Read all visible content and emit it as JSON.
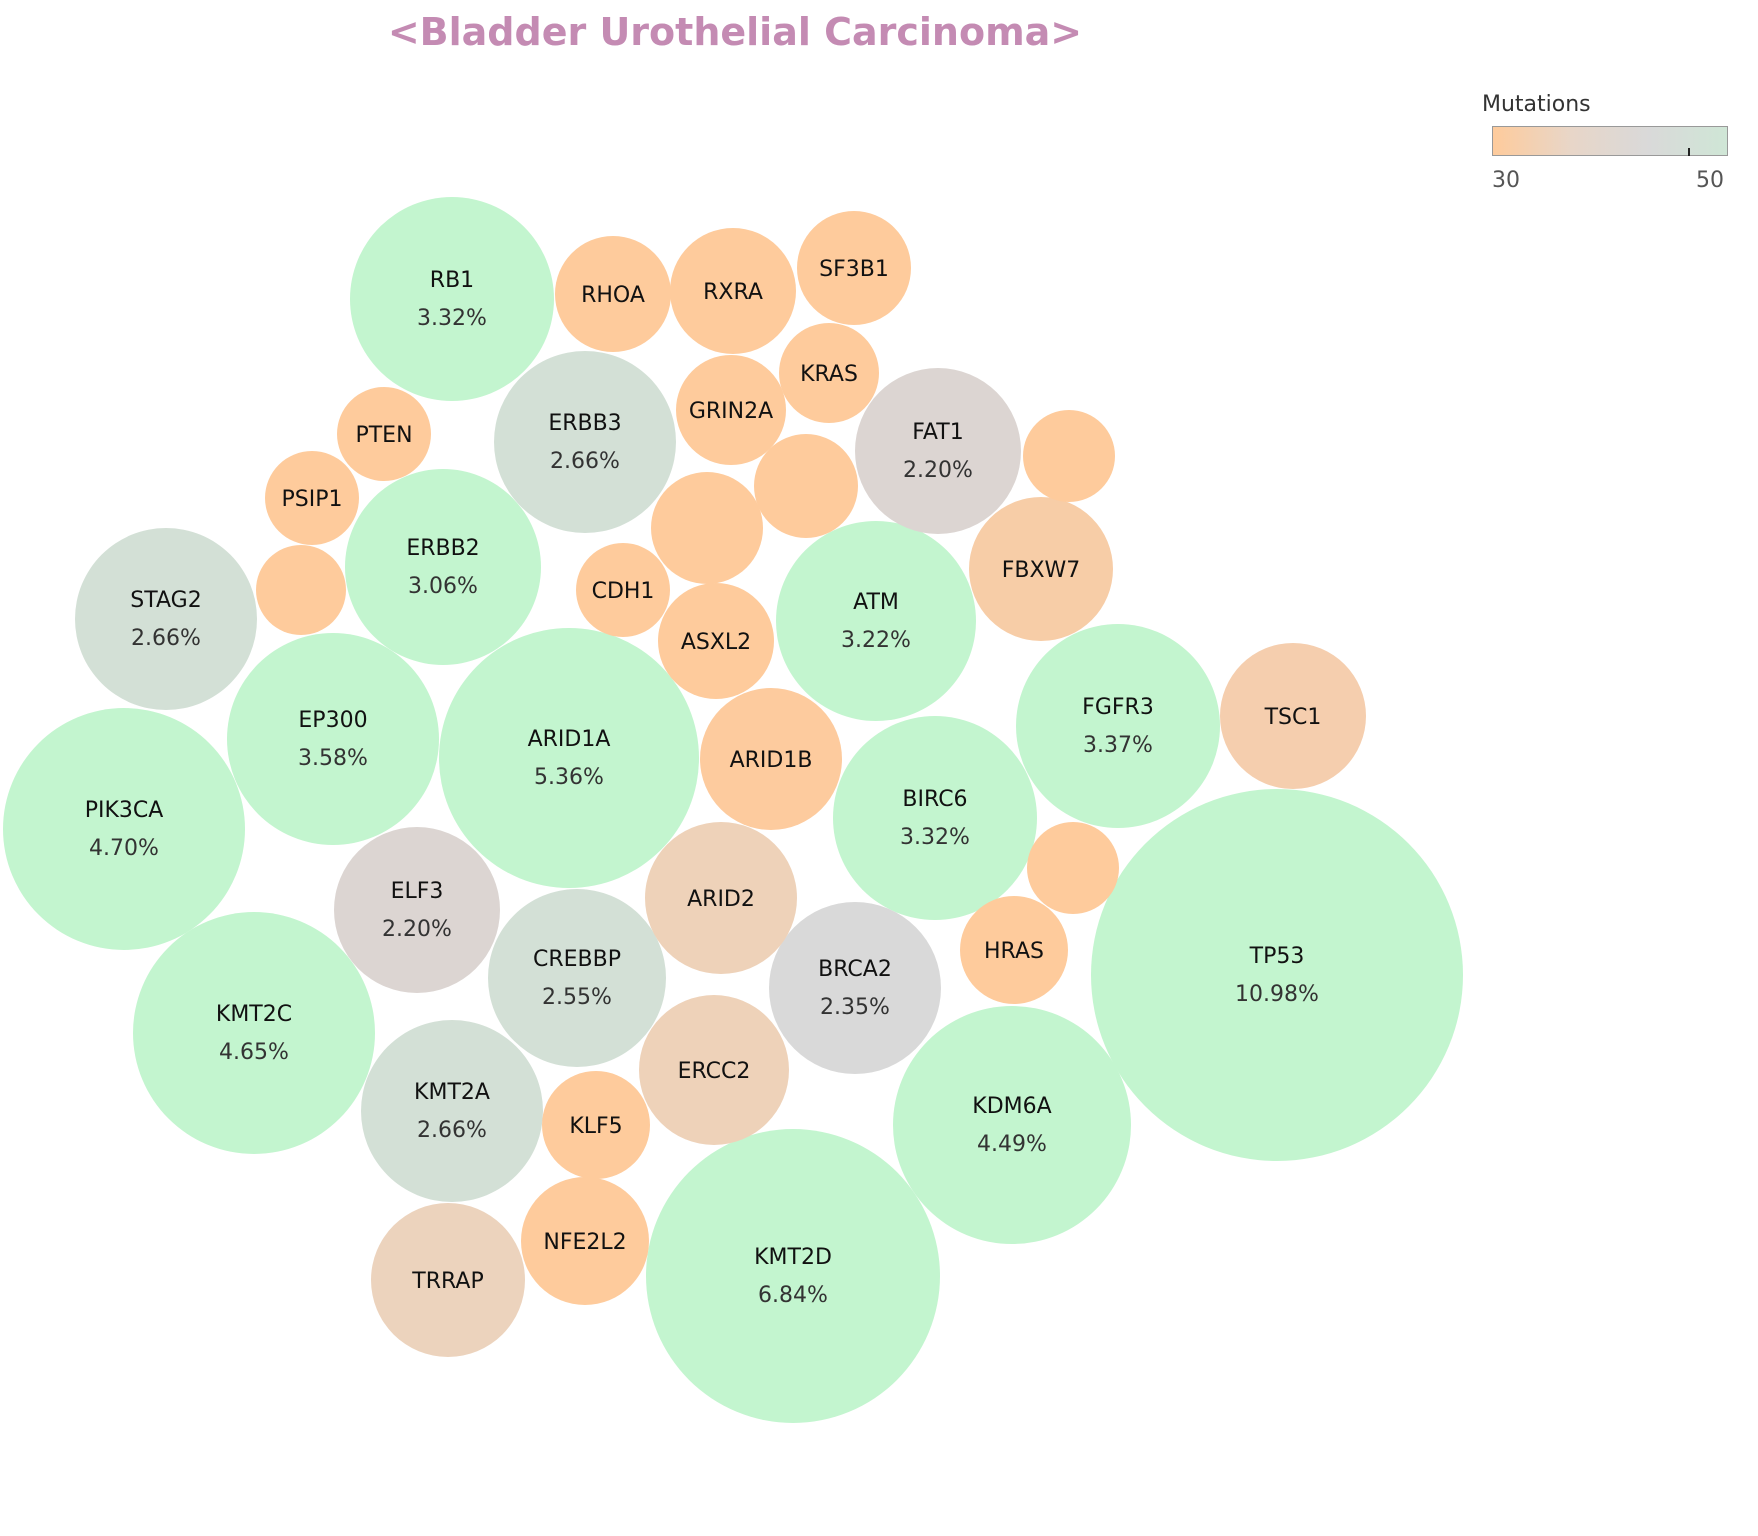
{
  "chart_data": {
    "type": "bubble",
    "title": "<Bladder Urothelial Carcinoma>",
    "title_color": "#c48bb3",
    "legend": {
      "title": "Mutations",
      "min_label": "30",
      "max_label": "50",
      "range": [
        30,
        50
      ],
      "colors": [
        "#fecb9c",
        "#e8d6c8",
        "#d9d9d9",
        "#cfe6d6"
      ],
      "placement": "top-right"
    },
    "color_scale": {
      "low": "#fecb9c",
      "mid_a": "#ecd3bd",
      "mid_b": "#dcd5d2",
      "mid_c": "#d3e0d6",
      "high": "#c3f5cf"
    },
    "bubbles": [
      {
        "gene": "TP53",
        "percent": "10.98%",
        "color": "#c3f5cf"
      },
      {
        "gene": "KMT2D",
        "percent": "6.84%",
        "color": "#c3f5cf"
      },
      {
        "gene": "ARID1A",
        "percent": "5.36%",
        "color": "#c3f5cf"
      },
      {
        "gene": "PIK3CA",
        "percent": "4.70%",
        "color": "#c3f5cf"
      },
      {
        "gene": "KMT2C",
        "percent": "4.65%",
        "color": "#c3f5cf"
      },
      {
        "gene": "KDM6A",
        "percent": "4.49%",
        "color": "#c3f5cf"
      },
      {
        "gene": "EP300",
        "percent": "3.58%",
        "color": "#c3f5cf"
      },
      {
        "gene": "FGFR3",
        "percent": "3.37%",
        "color": "#c3f5cf"
      },
      {
        "gene": "RB1",
        "percent": "3.32%",
        "color": "#c3f5cf"
      },
      {
        "gene": "BIRC6",
        "percent": "3.32%",
        "color": "#c3f5cf"
      },
      {
        "gene": "ATM",
        "percent": "3.22%",
        "color": "#c3f5cf"
      },
      {
        "gene": "ERBB2",
        "percent": "3.06%",
        "color": "#c3f5cf"
      },
      {
        "gene": "ERBB3",
        "percent": "2.66%",
        "color": "#d3e0d6"
      },
      {
        "gene": "STAG2",
        "percent": "2.66%",
        "color": "#d3e0d6"
      },
      {
        "gene": "KMT2A",
        "percent": "2.66%",
        "color": "#d3e0d6"
      },
      {
        "gene": "CREBBP",
        "percent": "2.55%",
        "color": "#d3e0d6"
      },
      {
        "gene": "BRCA2",
        "percent": "2.35%",
        "color": "#d9d9d9"
      },
      {
        "gene": "FAT1",
        "percent": "2.20%",
        "color": "#dcd5d2"
      },
      {
        "gene": "ELF3",
        "percent": "2.20%",
        "color": "#dcd5d2"
      },
      {
        "gene": "ARID2",
        "percent": "",
        "color": "#eed2b9"
      },
      {
        "gene": "ERCC2",
        "percent": "",
        "color": "#eed2b9"
      },
      {
        "gene": "TRRAP",
        "percent": "",
        "color": "#ecd3bd"
      },
      {
        "gene": "TSC1",
        "percent": "",
        "color": "#f5ceae"
      },
      {
        "gene": "FBXW7",
        "percent": "",
        "color": "#f7cda7"
      },
      {
        "gene": "ARID1B",
        "percent": "",
        "color": "#fdcb9e"
      },
      {
        "gene": "ASXL2",
        "percent": "",
        "color": "#fecb9c"
      },
      {
        "gene": "RXRA",
        "percent": "",
        "color": "#fecb9c"
      },
      {
        "gene": "RHOA",
        "percent": "",
        "color": "#fecb9c"
      },
      {
        "gene": "SF3B1",
        "percent": "",
        "color": "#fecb9c"
      },
      {
        "gene": "GRIN2A",
        "percent": "",
        "color": "#fecb9c"
      },
      {
        "gene": "KRAS",
        "percent": "",
        "color": "#fecb9c"
      },
      {
        "gene": "HRAS",
        "percent": "",
        "color": "#fecb9c"
      },
      {
        "gene": "KLF5",
        "percent": "",
        "color": "#fecb9c"
      },
      {
        "gene": "NFE2L2",
        "percent": "",
        "color": "#fecb9c"
      },
      {
        "gene": "CDH1",
        "percent": "",
        "color": "#fecb9c"
      },
      {
        "gene": "PTEN",
        "percent": "",
        "color": "#fecb9c"
      },
      {
        "gene": "PSIP1",
        "percent": "",
        "color": "#fecb9c"
      },
      {
        "gene": "",
        "percent": "",
        "color": "#fecb9c"
      },
      {
        "gene": "",
        "percent": "",
        "color": "#fecb9c"
      },
      {
        "gene": "",
        "percent": "",
        "color": "#fecb9c"
      },
      {
        "gene": "",
        "percent": "",
        "color": "#fecb9c"
      },
      {
        "gene": "",
        "percent": "",
        "color": "#fecb9c"
      }
    ]
  }
}
